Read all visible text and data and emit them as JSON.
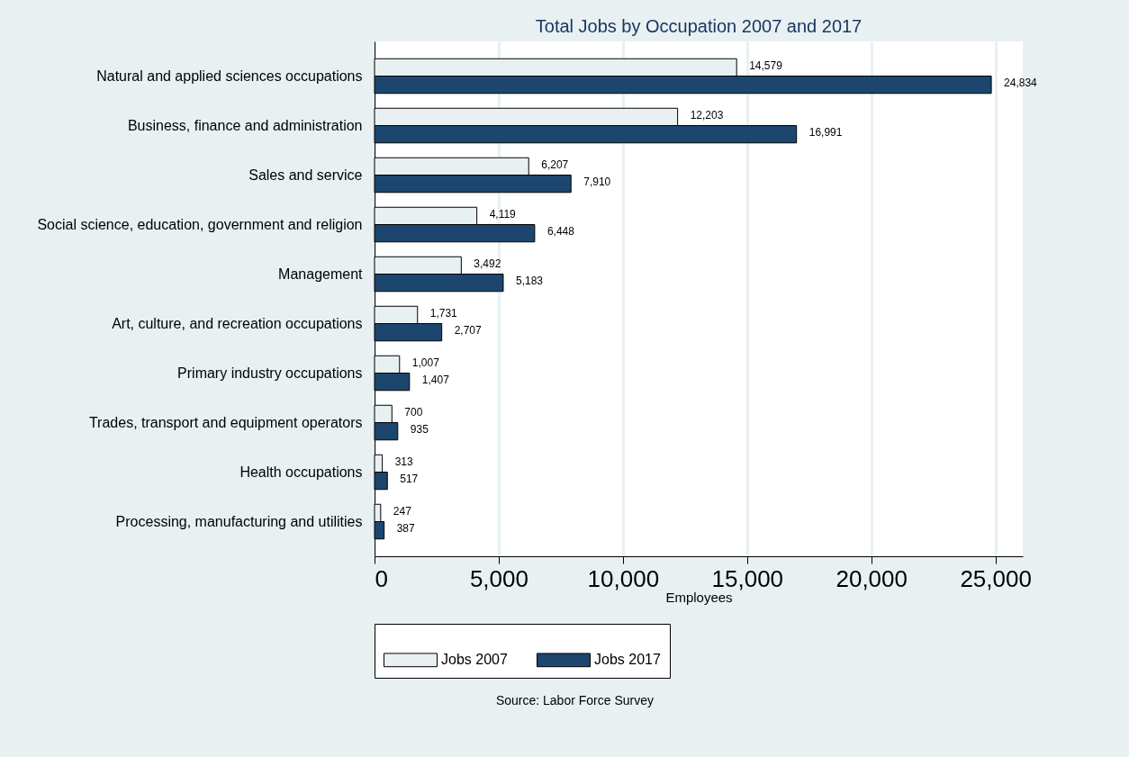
{
  "chart_data": {
    "type": "bar",
    "orientation": "horizontal",
    "title": "Total Jobs by Occupation 2007 and 2017",
    "xlabel": "Employees",
    "categories": [
      "Natural and applied sciences occupations",
      "Business, finance and administration",
      "Sales and service",
      "Social science, education, government and religion",
      "Management",
      "Art, culture, and recreation occupations",
      "Primary industry occupations",
      "Trades, transport and equipment operators",
      "Health occupations",
      "Processing, manufacturing and utilities"
    ],
    "series": [
      {
        "name": "Jobs 2007",
        "color": "#e8f0f2",
        "values": [
          14579,
          12203,
          6207,
          4119,
          3492,
          1731,
          1007,
          700,
          313,
          247
        ],
        "value_labels": [
          "14,579",
          "12,203",
          "6,207",
          "4,119",
          "3,492",
          "1,731",
          "1,007",
          "700",
          "313",
          "247"
        ]
      },
      {
        "name": "Jobs 2017",
        "color": "#1c466e",
        "values": [
          24834,
          16991,
          7910,
          6448,
          5183,
          2707,
          1407,
          935,
          517,
          387
        ],
        "value_labels": [
          "24,834",
          "16,991",
          "7,910",
          "6,448",
          "5,183",
          "2,707",
          "1,407",
          "935",
          "517",
          "387"
        ]
      }
    ],
    "xlim": [
      0,
      26100
    ],
    "xticks": [
      {
        "value": 0,
        "label": "0"
      },
      {
        "value": 5000,
        "label": "5,000"
      },
      {
        "value": 10000,
        "label": "10,000"
      },
      {
        "value": 15000,
        "label": "15,000"
      },
      {
        "value": 20000,
        "label": "20,000"
      },
      {
        "value": 25000,
        "label": "25,000"
      }
    ],
    "grid": "x",
    "legend": "bottom",
    "annotations": [
      "Source: Labor Force Survey"
    ]
  }
}
